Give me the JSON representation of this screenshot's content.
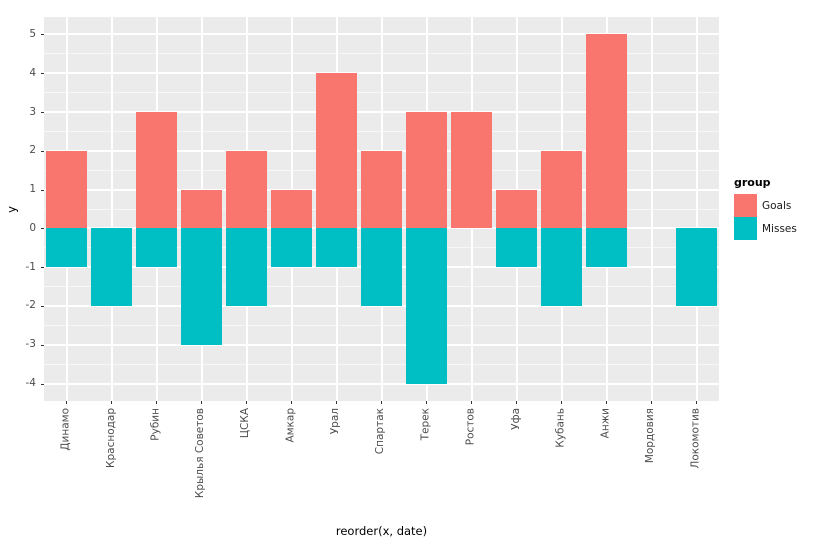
{
  "chart_data": {
    "type": "bar",
    "title": "",
    "xlabel": "reorder(x, date)",
    "ylabel": "y",
    "categories": [
      "Динамо",
      "Краснодар",
      "Рубин",
      "Крылья Советов",
      "ЦСКА",
      "Амкар",
      "Урал",
      "Спартак",
      "Терек",
      "Ростов",
      "Уфа",
      "Кубань",
      "Анжи",
      "Мордовия",
      "Локомотив"
    ],
    "series": [
      {
        "name": "Goals",
        "color": "#F8766D",
        "values": [
          2,
          0,
          3,
          1,
          2,
          1,
          4,
          2,
          3,
          3,
          1,
          2,
          5,
          0,
          0
        ]
      },
      {
        "name": "Misses",
        "color": "#00BFC4",
        "values": [
          -1,
          -2,
          -1,
          -3,
          -2,
          -1,
          -1,
          -2,
          -4,
          0,
          -1,
          -2,
          -1,
          0,
          -2
        ]
      }
    ],
    "y_ticks": [
      5,
      4,
      3,
      2,
      1,
      0,
      -1,
      -2,
      -3,
      -4
    ],
    "ylim": [
      -4.45,
      5.45
    ],
    "bar_width_fraction": 0.9,
    "grid": "major+minor horizontal, major vertical at category centers",
    "legend_position": "right",
    "panel_background": "#EBEBEB",
    "gridline_color": "#FFFFFF"
  },
  "axes": {
    "x_title": "reorder(x, date)",
    "y_title": "y"
  },
  "legend": {
    "title": "group",
    "items": [
      {
        "label": "Goals",
        "color": "#F8766D"
      },
      {
        "label": "Misses",
        "color": "#00BFC4"
      }
    ]
  }
}
